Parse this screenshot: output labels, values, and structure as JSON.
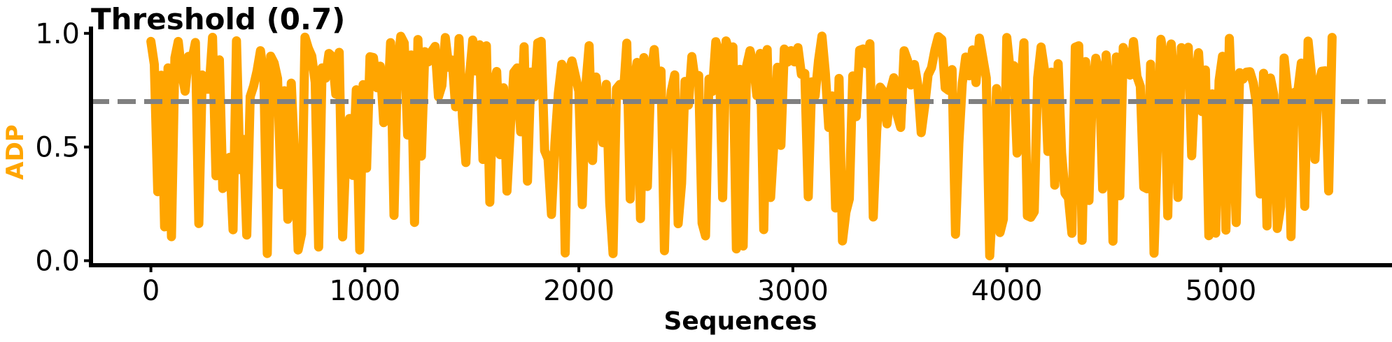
{
  "chart_data": {
    "type": "line",
    "title": "Threshold (0.7)",
    "xlabel": "Sequences",
    "ylabel": "ADP",
    "xlim": [
      -280,
      5800
    ],
    "ylim": [
      -0.02,
      1.03
    ],
    "x_ticks": [
      0,
      1000,
      2000,
      3000,
      4000,
      5000
    ],
    "x_tick_labels": [
      "0",
      "1000",
      "2000",
      "3000",
      "4000",
      "5000"
    ],
    "y_ticks": [
      0.0,
      0.5,
      1.0
    ],
    "y_tick_labels": [
      "0.0",
      "0.5",
      "1.0"
    ],
    "grid": false,
    "series": [
      {
        "name": "ADP",
        "color": "#FFA500",
        "x_start": 0,
        "x_step": 16,
        "x_end": 5520,
        "seed": 20240611,
        "high_range": [
          0.72,
          0.99
        ],
        "low_range": [
          0.02,
          0.69
        ],
        "high_probability": 0.62,
        "note": "per-sequence ADP values estimated as a noisy oscillating trace between ~0.02 and ~0.99"
      }
    ],
    "threshold": {
      "value": 0.7,
      "label": "Threshold (0.7)",
      "color": "#808080",
      "style": "dashed"
    }
  }
}
